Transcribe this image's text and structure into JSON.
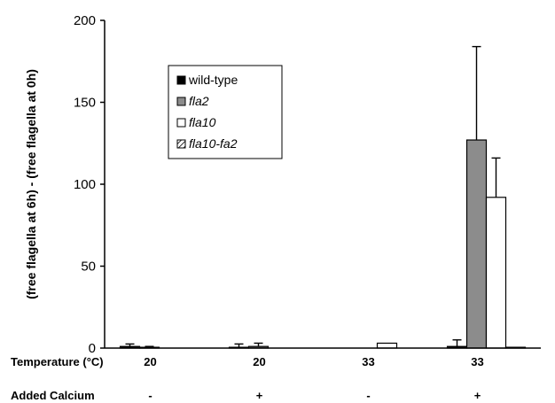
{
  "chart_data": {
    "type": "bar",
    "title": "",
    "xlabel": "",
    "ylabel": "(free flagella at 6h) - (free flagella at 0h)",
    "ylim": [
      0,
      200
    ],
    "yticks": [
      0,
      50,
      100,
      150,
      200
    ],
    "grid": false,
    "legend_position": "top-left",
    "categories": [
      "20 / -",
      "20 / +",
      "33 / -",
      "33 / +"
    ],
    "row_labels": [
      {
        "label": "Temperature (°C)",
        "values": [
          "20",
          "20",
          "33",
          "33"
        ]
      },
      {
        "label": "Added Calcium",
        "values": [
          "-",
          "+",
          "-",
          "+"
        ]
      }
    ],
    "series": [
      {
        "name": "wild-type",
        "style": "solid-black",
        "values": [
          1,
          0.5,
          0,
          1
        ],
        "errors": [
          1.5,
          2,
          0,
          4
        ]
      },
      {
        "name": "fla2",
        "style": "gray",
        "values": [
          0.5,
          1,
          0,
          127
        ],
        "errors": [
          0.5,
          2,
          0,
          57
        ]
      },
      {
        "name": "fla10",
        "style": "white",
        "values": [
          0,
          0,
          3,
          92
        ],
        "errors": [
          0,
          0,
          0,
          24
        ]
      },
      {
        "name": "fla10-fa2",
        "style": "hatched",
        "values": [
          0,
          0,
          0,
          0.5
        ],
        "errors": [
          0,
          0,
          0,
          0
        ]
      }
    ]
  },
  "colors": {
    "wild-type": "#000000",
    "fla2": "#8c8c8c",
    "fla10": "#ffffff",
    "axis": "#000000"
  }
}
